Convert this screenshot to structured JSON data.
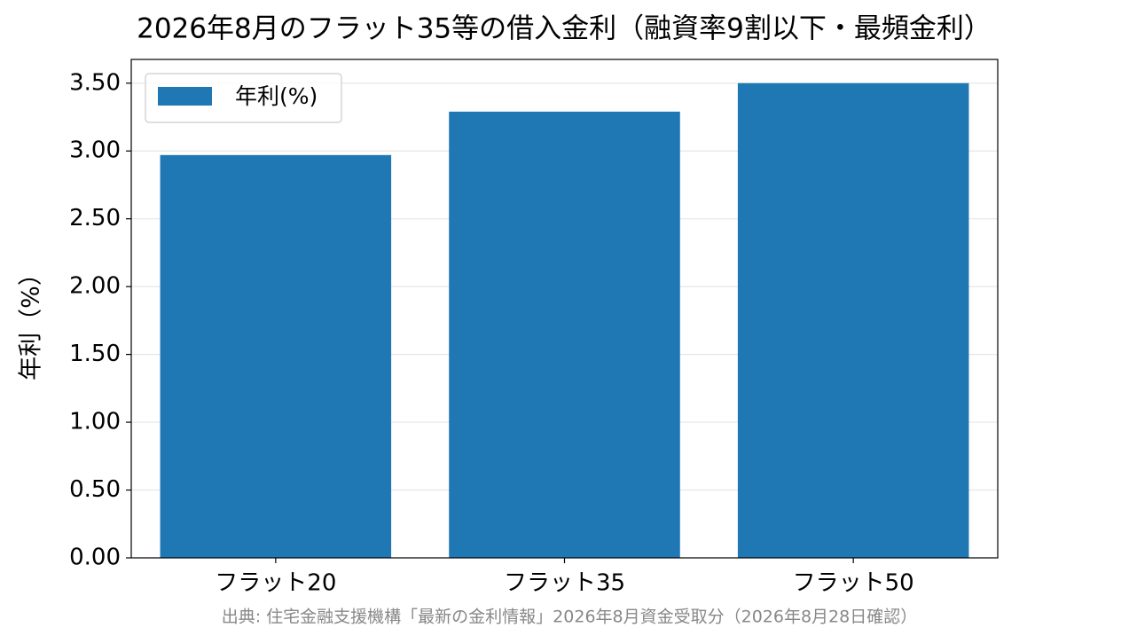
{
  "chart_data": {
    "type": "bar",
    "title": "2026年8月のフラット35等の借入金利（融資率9割以下・最頻金利）",
    "y_label": "年利（%）",
    "source": "出典: 住宅金融支援機構「最新の金利情報」2026年8月資金受取分（2026年8月28日確認）",
    "categories": [
      "フラット20",
      "フラット35",
      "フラット50"
    ],
    "series": [
      {
        "name": "年利(%)",
        "color": "#1f77b4",
        "values": [
          2.97,
          3.29,
          3.5
        ]
      }
    ],
    "ylim": [
      0,
      3.675
    ],
    "yticks": [
      {
        "value": 0,
        "label": "0.00"
      },
      {
        "value": 0.5,
        "label": "0.50"
      },
      {
        "value": 1,
        "label": "1.00"
      },
      {
        "value": 1.5,
        "label": "1.50"
      },
      {
        "value": 2,
        "label": "2.00"
      },
      {
        "value": 2.5,
        "label": "2.50"
      },
      {
        "value": 3,
        "label": "3.00"
      },
      {
        "value": 3.5,
        "label": "3.50"
      }
    ],
    "grid": true,
    "legend": "upper-left"
  }
}
